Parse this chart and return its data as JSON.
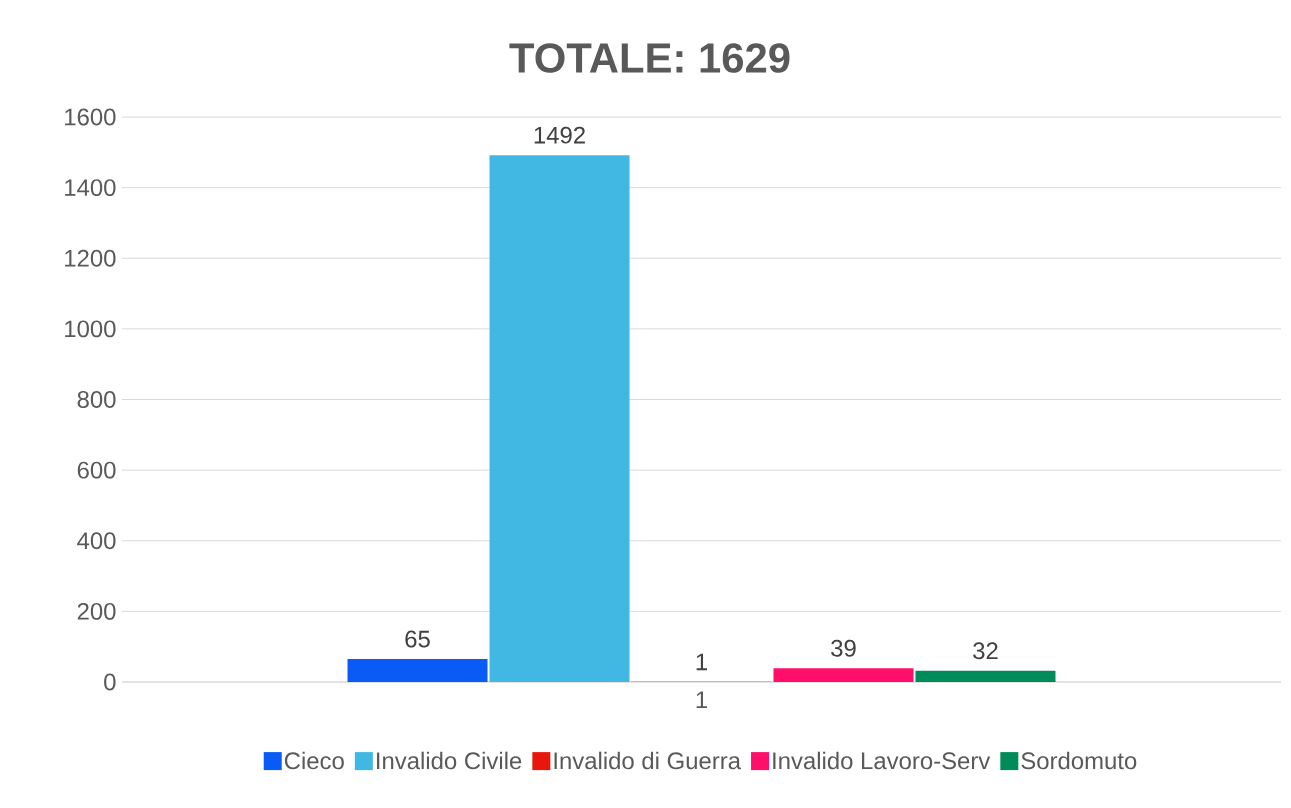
{
  "chart_data": {
    "type": "bar",
    "title": "TOTALE: 1629",
    "categories": [
      "1"
    ],
    "series": [
      {
        "name": "Cieco",
        "color": "#0a5af5",
        "values": [
          65
        ]
      },
      {
        "name": "Invalido Civile",
        "color": "#41b8e4",
        "values": [
          1492
        ]
      },
      {
        "name": "Invalido di Guerra",
        "color": "#e8170b",
        "values": [
          1
        ]
      },
      {
        "name": "Invalido Lavoro-Serv",
        "color": "#ff0f6a",
        "values": [
          39
        ]
      },
      {
        "name": "Sordomuto",
        "color": "#008c5a",
        "values": [
          32
        ]
      }
    ],
    "ylim": [
      0,
      1600
    ],
    "yticks": [
      0,
      200,
      400,
      600,
      800,
      1000,
      1200,
      1400,
      1600
    ],
    "grid": "y",
    "legend": "bottom",
    "data_labels": true
  }
}
